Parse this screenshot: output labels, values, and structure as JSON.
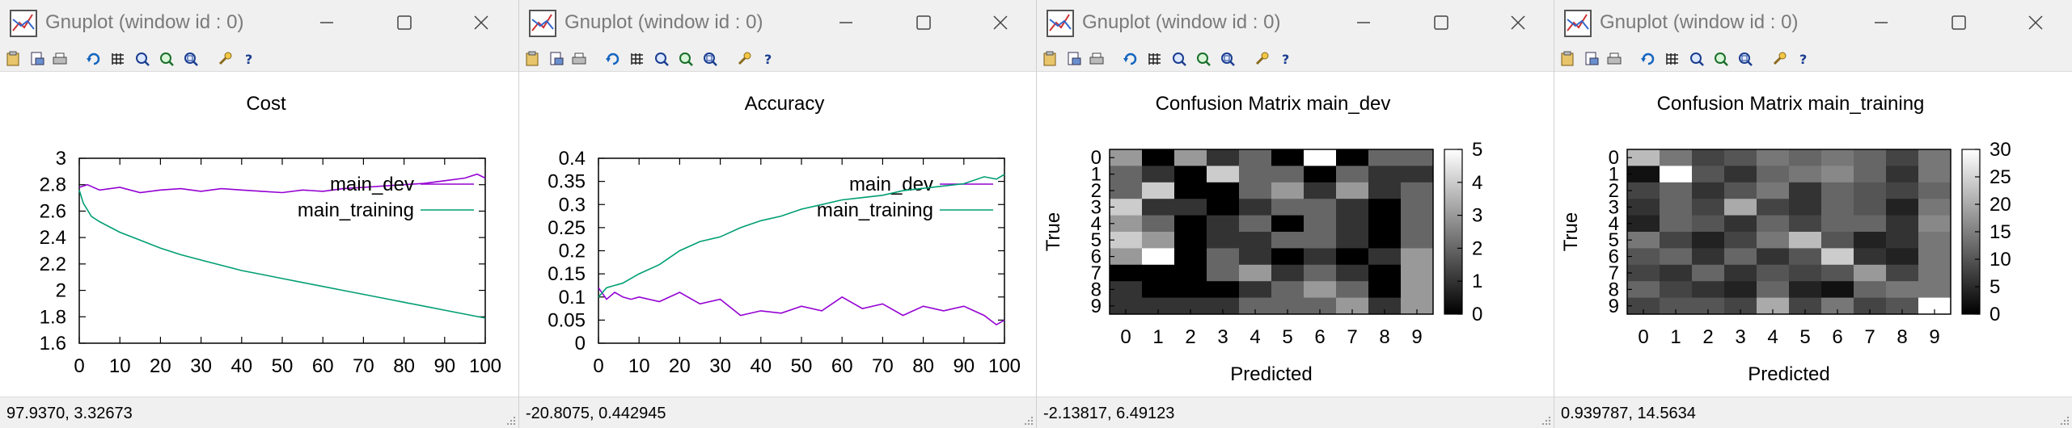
{
  "windows": [
    {
      "title": "Gnuplot (window id : 0)",
      "status": "97.9370,  3.32673",
      "chart_data": {
        "type": "line",
        "title": "Cost",
        "xlabel": "",
        "ylabel": "",
        "xlim": [
          0,
          100
        ],
        "ylim": [
          1.6,
          3
        ],
        "xticks": [
          "0",
          "10",
          "20",
          "30",
          "40",
          "50",
          "60",
          "70",
          "80",
          "90",
          "100"
        ],
        "yticks": [
          "1.6",
          "1.8",
          "2",
          "2.2",
          "2.4",
          "2.6",
          "2.8",
          "3"
        ],
        "legend_position": "top-right",
        "series": [
          {
            "name": "main_dev",
            "color": "#9400d3",
            "x": [
              0,
              2,
              5,
              10,
              15,
              20,
              25,
              30,
              35,
              40,
              45,
              50,
              55,
              60,
              65,
              70,
              75,
              80,
              85,
              90,
              95,
              98,
              100
            ],
            "y": [
              2.78,
              2.8,
              2.76,
              2.78,
              2.74,
              2.76,
              2.77,
              2.75,
              2.77,
              2.76,
              2.75,
              2.74,
              2.76,
              2.75,
              2.77,
              2.78,
              2.79,
              2.8,
              2.81,
              2.83,
              2.85,
              2.88,
              2.85
            ]
          },
          {
            "name": "main_training",
            "color": "#009e73",
            "x": [
              0,
              1,
              3,
              5,
              10,
              15,
              20,
              25,
              30,
              35,
              40,
              45,
              50,
              55,
              60,
              65,
              70,
              75,
              80,
              85,
              90,
              95,
              100
            ],
            "y": [
              2.76,
              2.66,
              2.56,
              2.52,
              2.44,
              2.38,
              2.32,
              2.27,
              2.23,
              2.19,
              2.15,
              2.12,
              2.09,
              2.06,
              2.03,
              2.0,
              1.97,
              1.94,
              1.91,
              1.88,
              1.85,
              1.82,
              1.79
            ]
          }
        ]
      }
    },
    {
      "title": "Gnuplot (window id : 0)",
      "status": "-20.8075,  0.442945",
      "chart_data": {
        "type": "line",
        "title": "Accuracy",
        "xlabel": "",
        "ylabel": "",
        "xlim": [
          0,
          100
        ],
        "ylim": [
          0,
          0.4
        ],
        "xticks": [
          "0",
          "10",
          "20",
          "30",
          "40",
          "50",
          "60",
          "70",
          "80",
          "90",
          "100"
        ],
        "yticks": [
          "0",
          "0.05",
          "0.1",
          "0.15",
          "0.2",
          "0.25",
          "0.3",
          "0.35",
          "0.4"
        ],
        "legend_position": "top-right",
        "series": [
          {
            "name": "main_dev",
            "color": "#9400d3",
            "x": [
              0,
              2,
              4,
              6,
              8,
              10,
              15,
              20,
              25,
              30,
              35,
              40,
              45,
              50,
              55,
              60,
              65,
              70,
              75,
              80,
              85,
              90,
              95,
              98,
              100
            ],
            "y": [
              0.12,
              0.095,
              0.11,
              0.1,
              0.095,
              0.1,
              0.09,
              0.11,
              0.085,
              0.095,
              0.06,
              0.07,
              0.065,
              0.08,
              0.07,
              0.1,
              0.075,
              0.085,
              0.06,
              0.08,
              0.07,
              0.08,
              0.06,
              0.04,
              0.05
            ]
          },
          {
            "name": "main_training",
            "color": "#009e73",
            "x": [
              0,
              2,
              4,
              6,
              8,
              10,
              15,
              20,
              25,
              30,
              35,
              40,
              45,
              50,
              55,
              60,
              65,
              70,
              75,
              80,
              85,
              90,
              95,
              98,
              100
            ],
            "y": [
              0.1,
              0.12,
              0.125,
              0.13,
              0.14,
              0.15,
              0.17,
              0.2,
              0.22,
              0.23,
              0.25,
              0.265,
              0.275,
              0.29,
              0.3,
              0.31,
              0.315,
              0.32,
              0.33,
              0.335,
              0.34,
              0.345,
              0.36,
              0.355,
              0.365
            ]
          }
        ]
      }
    },
    {
      "title": "Gnuplot (window id : 0)",
      "status": "-2.13817,  6.49123",
      "chart_data": {
        "type": "heatmap",
        "title": "Confusion Matrix main_dev",
        "xlabel": "Predicted",
        "ylabel": "True",
        "x": [
          "0",
          "1",
          "2",
          "3",
          "4",
          "5",
          "6",
          "7",
          "8",
          "9"
        ],
        "y": [
          "0",
          "1",
          "2",
          "3",
          "4",
          "5",
          "6",
          "7",
          "8",
          "9"
        ],
        "cbrange": [
          0,
          5
        ],
        "cbticks": [
          "0",
          "1",
          "2",
          "3",
          "4",
          "5"
        ],
        "values": [
          [
            3,
            0,
            3,
            1,
            2,
            0,
            5,
            0,
            2,
            2
          ],
          [
            2,
            1,
            0,
            4,
            2,
            2,
            0,
            2,
            1,
            1
          ],
          [
            2,
            4,
            0,
            0,
            2,
            3,
            1,
            3,
            1,
            2
          ],
          [
            4,
            1,
            1,
            0,
            1,
            2,
            2,
            1,
            0,
            2
          ],
          [
            3,
            2,
            0,
            1,
            2,
            0,
            2,
            1,
            0,
            2
          ],
          [
            4,
            3,
            0,
            1,
            1,
            2,
            2,
            1,
            0,
            2
          ],
          [
            3,
            5,
            0,
            2,
            1,
            0,
            1,
            0,
            1,
            3
          ],
          [
            0,
            0,
            0,
            2,
            3,
            1,
            2,
            1,
            0,
            3
          ],
          [
            1,
            0,
            0,
            0,
            1,
            2,
            3,
            2,
            0,
            3
          ],
          [
            1,
            1,
            1,
            1,
            2,
            2,
            2,
            3,
            1,
            3
          ]
        ]
      }
    },
    {
      "title": "Gnuplot (window id : 0)",
      "status": "0.939787,  14.5634",
      "chart_data": {
        "type": "heatmap",
        "title": "Confusion Matrix main_training",
        "xlabel": "Predicted",
        "ylabel": "True",
        "x": [
          "0",
          "1",
          "2",
          "3",
          "4",
          "5",
          "6",
          "7",
          "8",
          "9"
        ],
        "y": [
          "0",
          "1",
          "2",
          "3",
          "4",
          "5",
          "6",
          "7",
          "8",
          "9"
        ],
        "cbrange": [
          0,
          30
        ],
        "cbticks": [
          "0",
          "5",
          "10",
          "15",
          "20",
          "25",
          "30"
        ],
        "values": [
          [
            22,
            14,
            8,
            10,
            14,
            12,
            14,
            12,
            8,
            14
          ],
          [
            2,
            30,
            10,
            6,
            12,
            14,
            16,
            12,
            6,
            14
          ],
          [
            8,
            12,
            6,
            10,
            14,
            6,
            12,
            10,
            8,
            12
          ],
          [
            6,
            12,
            8,
            20,
            8,
            6,
            12,
            10,
            4,
            14
          ],
          [
            4,
            12,
            10,
            6,
            12,
            8,
            12,
            12,
            6,
            16
          ],
          [
            14,
            8,
            4,
            8,
            14,
            22,
            10,
            4,
            6,
            14
          ],
          [
            10,
            12,
            6,
            12,
            6,
            10,
            24,
            6,
            4,
            14
          ],
          [
            8,
            6,
            12,
            6,
            10,
            8,
            10,
            18,
            8,
            14
          ],
          [
            12,
            8,
            6,
            4,
            12,
            4,
            2,
            12,
            14,
            14
          ],
          [
            8,
            10,
            10,
            8,
            20,
            8,
            14,
            8,
            10,
            30
          ]
        ]
      }
    }
  ]
}
